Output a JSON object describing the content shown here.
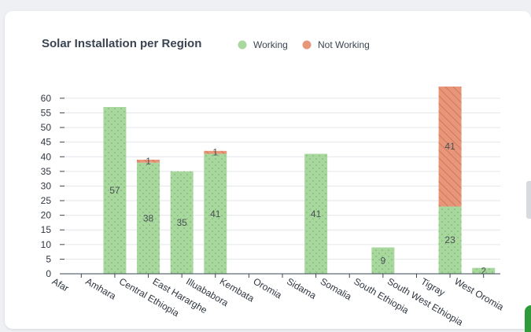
{
  "chart_data": {
    "type": "bar",
    "title": "Solar Installation per Region",
    "categories": [
      "Afar",
      "Amhara",
      "Central Ethiopia",
      "East Hararghe",
      "Illuababora",
      "Kembata",
      "Oromia",
      "Sidama",
      "Somalia",
      "South Ethiopia",
      "South West Ethiopia",
      "Tigray",
      "West Oromia"
    ],
    "series": [
      {
        "name": "Working",
        "values": [
          0,
          57,
          38,
          35,
          41,
          0,
          0,
          41,
          0,
          9,
          0,
          23,
          2
        ],
        "color": "#a8d89e"
      },
      {
        "name": "Not Working",
        "values": [
          0,
          0,
          1,
          0,
          1,
          0,
          0,
          0,
          0,
          0,
          0,
          41,
          0
        ],
        "color": "#e8967a"
      }
    ],
    "stacked": true,
    "ylim": [
      0,
      64
    ],
    "yticks": [
      0,
      5,
      10,
      15,
      20,
      25,
      30,
      35,
      40,
      45,
      50,
      55,
      60
    ],
    "grid": true,
    "legend_position": "top"
  }
}
